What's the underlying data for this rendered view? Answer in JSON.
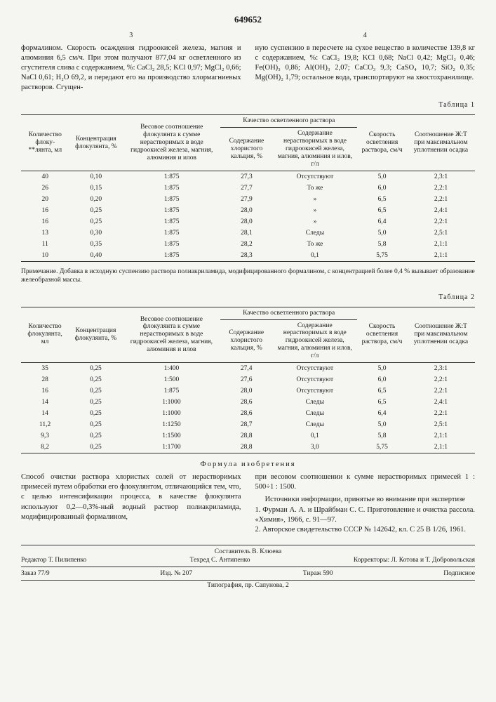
{
  "patent_number": "649652",
  "col_left_num": "3",
  "col_right_num": "4",
  "left_text": "формалином. Скорость осаждения гидроокисей железа, магния и алюминия 6,5 см/ч. При этом получают 877,04 кг осветленного из сгустителя слива с содержанием, %: CaCl₂ 28,5; KCl 0,97; MgCl₂ 0,66; NaCl 0,61; H₂O 69,2, и передают его на производство хлормагниевых растворов. Сгущен-",
  "right_text": "ную суспензию в пересчете на сухое вещество в количестве 139,8 кг с содержанием, %: CaCl₂ 19,8; KCl 0,68; NaCl 0,42; MgCl₂ 0,46; Fe(OH)₃ 0,86; Al(OH)₃ 2,07; CaCO₃ 9,3; CaSO₄ 10,7; SiO₂ 0,35; Mg(OH)₂ 1,79; остальное вода, транспортируют на хвостохранилище.",
  "margin_5": "5",
  "table1_label": "Таблица 1",
  "table1": {
    "headers": {
      "h1": "Количество флоку-**лянта, мл",
      "h2": "Концентрация флокулянта, %",
      "h3": "Весовое соотношение флокулянта к сумме нерастворимых в воде гидроокисей железа, магния, алюминия и илов",
      "h4_group": "Качество осветленного раствора",
      "h4a": "Содержание хлористого кальция, %",
      "h4b": "Содержание нерастворимых в воде гидроокисей железа, магния, алюминия и илов, г/л",
      "h5": "Скорость осветления раствора, см/ч",
      "h6": "Соотношение Ж:Т при максимальном уплотнении осадка"
    },
    "rows": [
      [
        "40",
        "0,10",
        "1:875",
        "27,3",
        "Отсутствуют",
        "5,0",
        "2,3:1"
      ],
      [
        "26",
        "0,15",
        "1:875",
        "27,7",
        "То же",
        "6,0",
        "2,2:1"
      ],
      [
        "20",
        "0,20",
        "1:875",
        "27,9",
        "»",
        "6,5",
        "2,2:1"
      ],
      [
        "16",
        "0,25",
        "1:875",
        "28,0",
        "»",
        "6,5",
        "2,4:1"
      ],
      [
        "16",
        "0,25",
        "1:875",
        "28,0",
        "»",
        "6,4",
        "2,2:1"
      ],
      [
        "13",
        "0,30",
        "1:875",
        "28,1",
        "Следы",
        "5,0",
        "2,5:1"
      ],
      [
        "11",
        "0,35",
        "1:875",
        "28,2",
        "То же",
        "5,8",
        "2,1:1"
      ],
      [
        "10",
        "0,40",
        "1:875",
        "28,3",
        "0,1",
        "5,75",
        "2,1:1"
      ]
    ]
  },
  "note1": "Примечание. Добавка в исходную суспензию раствора полиакриламида, модифицированного формалином, с концентрацией более 0,4 % вызывает образование желеобразной массы.",
  "table2_label": "Таблица 2",
  "table2": {
    "headers": {
      "h1": "Количество флокулянта, мл",
      "h2": "Концентрация флокулянта, %",
      "h3": "Весовое соотношение флокулянта к сумме нерастворимых в воде гидроокисей железа, магния, алюминия и илов",
      "h4_group": "Качество осветленного раствора",
      "h4a": "Содержание хлористого кальция, %",
      "h4b": "Содержание нерастворимых в воде гидроокисей железа, магния, алюминия и илов, г/л",
      "h5": "Скорость осветления раствора, см/ч",
      "h6": "Соотношение Ж:Т при максимальном уплотнении осадка"
    },
    "rows": [
      [
        "35",
        "0,25",
        "1:400",
        "27,4",
        "Отсутствуют",
        "5,0",
        "2,3:1"
      ],
      [
        "28",
        "0,25",
        "1:500",
        "27,6",
        "Отсутствуют",
        "6,0",
        "2,2:1"
      ],
      [
        "16",
        "0,25",
        "1:875",
        "28,0",
        "Отсутствуют",
        "6,5",
        "2,2:1"
      ],
      [
        "14",
        "0,25",
        "1:1000",
        "28,6",
        "Следы",
        "6,5",
        "2,4:1"
      ],
      [
        "14",
        "0,25",
        "1:1000",
        "28,6",
        "Следы",
        "6,4",
        "2,2:1"
      ],
      [
        "11,2",
        "0,25",
        "1:1250",
        "28,7",
        "Следы",
        "5,0",
        "2,5:1"
      ],
      [
        "9,3",
        "0,25",
        "1:1500",
        "28,8",
        "0,1",
        "5,8",
        "2,1:1"
      ],
      [
        "8,2",
        "0,25",
        "1:1700",
        "28,8",
        "3,0",
        "5,75",
        "2,1:1"
      ]
    ]
  },
  "formula_title": "Формула изобретения",
  "claim_left": "Способ очистки раствора хлористых солей от нерастворимых примесей путем обработки его флокулянтом, отличающийся тем, что, с целью интенсификации процесса, в качестве флокулянта используют 0,2—0,3%-ный водный раствор полиакриламида, модифицированный формалином,",
  "claim_right": "при весовом соотношении к сумме нерастворимых примесей 1 : 500÷1 : 1500.",
  "sources_title": "Источники информации,\nпринятые во внимание при экспертизе",
  "src1": "1. Фурман А. А. и Шрайбман С. С. Приготовление и очистка рассола. «Химия», 1966, с. 91—97.",
  "src2": "2. Авторское свидетельство СССР № 142642, кл. С 25 В 1/26, 1961.",
  "margin_10": "10",
  "margin_15": "15",
  "footer": {
    "compiler": "Составитель В. Клюева",
    "editor": "Редактор Т. Пилипенко",
    "techred": "Техред С. Антипенко",
    "correctors": "Корректоры: Л. Котова и Т. Добровольская",
    "order": "Заказ 77/9",
    "ed": "Изд. № 207",
    "tirage": "Тираж 590",
    "subscribe": "Подписное",
    "typography": "Типография, пр. Сапунова, 2"
  }
}
